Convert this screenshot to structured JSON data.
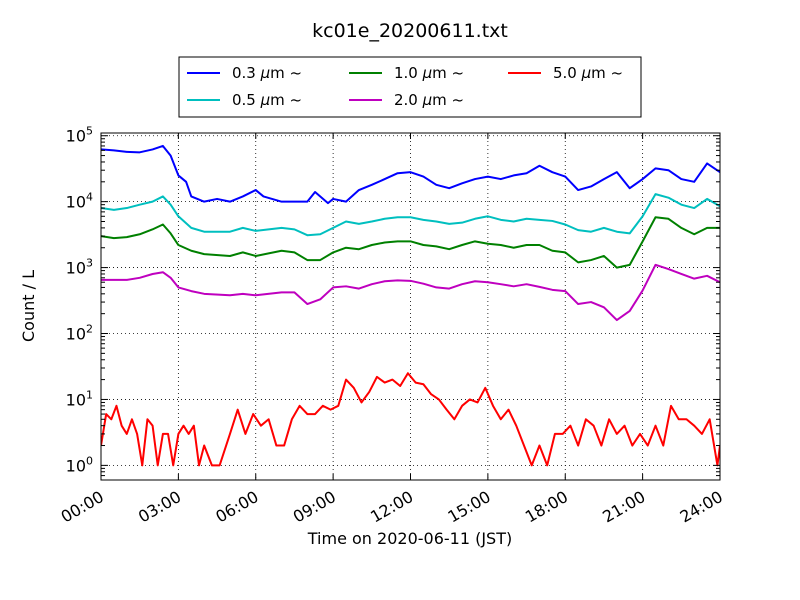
{
  "chart_data": {
    "type": "line",
    "title": "kc01e_20200611.txt",
    "xlabel": "Time on 2020-06-11 (JST)",
    "ylabel": "Count / L",
    "x_range_hours": [
      0,
      24
    ],
    "x_ticks": [
      {
        "hour": 0,
        "label": "00:00"
      },
      {
        "hour": 3,
        "label": "03:00"
      },
      {
        "hour": 6,
        "label": "06:00"
      },
      {
        "hour": 9,
        "label": "09:00"
      },
      {
        "hour": 12,
        "label": "12:00"
      },
      {
        "hour": 15,
        "label": "15:00"
      },
      {
        "hour": 18,
        "label": "18:00"
      },
      {
        "hour": 21,
        "label": "21:00"
      },
      {
        "hour": 24,
        "label": "24:00"
      }
    ],
    "y_scale": "log",
    "y_range": [
      0.6,
      110000
    ],
    "y_ticks": [
      {
        "value": 1,
        "base": "10",
        "exp": "0"
      },
      {
        "value": 10,
        "base": "10",
        "exp": "1"
      },
      {
        "value": 100,
        "base": "10",
        "exp": "2"
      },
      {
        "value": 1000,
        "base": "10",
        "exp": "3"
      },
      {
        "value": 10000,
        "base": "10",
        "exp": "4"
      },
      {
        "value": 100000,
        "base": "10",
        "exp": "5"
      }
    ],
    "grid": true,
    "legend_position": "top-center, above plot",
    "series": [
      {
        "name": "0.3 μm ~",
        "name_parts": [
          "0.3 ",
          "μ",
          "m  ~"
        ],
        "color": "#0000ff",
        "points": [
          [
            0,
            62000
          ],
          [
            0.5,
            60000
          ],
          [
            1,
            57000
          ],
          [
            1.5,
            56000
          ],
          [
            2,
            62000
          ],
          [
            2.4,
            70000
          ],
          [
            2.7,
            50000
          ],
          [
            3,
            25000
          ],
          [
            3.3,
            20000
          ],
          [
            3.5,
            12000
          ],
          [
            4,
            10000
          ],
          [
            4.5,
            11000
          ],
          [
            5,
            10000
          ],
          [
            5.5,
            12000
          ],
          [
            6,
            15000
          ],
          [
            6.3,
            12000
          ],
          [
            7,
            10000
          ],
          [
            8,
            10000
          ],
          [
            8.3,
            14000
          ],
          [
            8.8,
            9500
          ],
          [
            9,
            11000
          ],
          [
            9.5,
            10000
          ],
          [
            10,
            15000
          ],
          [
            10.5,
            18000
          ],
          [
            11,
            22000
          ],
          [
            11.5,
            27000
          ],
          [
            12,
            28000
          ],
          [
            12.5,
            24000
          ],
          [
            13,
            18000
          ],
          [
            13.5,
            16000
          ],
          [
            14,
            19000
          ],
          [
            14.5,
            22000
          ],
          [
            15,
            24000
          ],
          [
            15.5,
            22000
          ],
          [
            16,
            25000
          ],
          [
            16.5,
            27000
          ],
          [
            17,
            35000
          ],
          [
            17.5,
            28000
          ],
          [
            18,
            24000
          ],
          [
            18.5,
            15000
          ],
          [
            19,
            17000
          ],
          [
            19.5,
            22000
          ],
          [
            20,
            28000
          ],
          [
            20.5,
            16000
          ],
          [
            21,
            22000
          ],
          [
            21.5,
            32000
          ],
          [
            22,
            30000
          ],
          [
            22.5,
            22000
          ],
          [
            23,
            20000
          ],
          [
            23.5,
            38000
          ],
          [
            24,
            28000
          ]
        ]
      },
      {
        "name": "0.5 μm ~",
        "name_parts": [
          "0.5 ",
          "μ",
          "m  ~"
        ],
        "color": "#00bfbf",
        "points": [
          [
            0,
            8000
          ],
          [
            0.5,
            7500
          ],
          [
            1,
            8000
          ],
          [
            1.5,
            9000
          ],
          [
            2,
            10000
          ],
          [
            2.4,
            12000
          ],
          [
            2.7,
            9000
          ],
          [
            3,
            6000
          ],
          [
            3.5,
            4000
          ],
          [
            4,
            3500
          ],
          [
            5,
            3500
          ],
          [
            5.5,
            4000
          ],
          [
            6,
            3600
          ],
          [
            7,
            4000
          ],
          [
            7.5,
            3800
          ],
          [
            8,
            3100
          ],
          [
            8.5,
            3200
          ],
          [
            9,
            4000
          ],
          [
            9.5,
            5000
          ],
          [
            10,
            4600
          ],
          [
            10.5,
            5000
          ],
          [
            11,
            5500
          ],
          [
            11.5,
            5800
          ],
          [
            12,
            5800
          ],
          [
            12.5,
            5300
          ],
          [
            13,
            5000
          ],
          [
            13.5,
            4600
          ],
          [
            14,
            4800
          ],
          [
            14.5,
            5500
          ],
          [
            15,
            6000
          ],
          [
            15.5,
            5300
          ],
          [
            16,
            5000
          ],
          [
            16.5,
            5500
          ],
          [
            17,
            5300
          ],
          [
            17.5,
            5100
          ],
          [
            18,
            4500
          ],
          [
            18.5,
            3700
          ],
          [
            19,
            3500
          ],
          [
            19.5,
            4000
          ],
          [
            20,
            3500
          ],
          [
            20.5,
            3300
          ],
          [
            21,
            6000
          ],
          [
            21.5,
            13000
          ],
          [
            22,
            11500
          ],
          [
            22.5,
            9000
          ],
          [
            23,
            8000
          ],
          [
            23.5,
            11000
          ],
          [
            24,
            8500
          ]
        ]
      },
      {
        "name": "1.0 μm ~",
        "name_parts": [
          "1.0 ",
          "μ",
          "m  ~"
        ],
        "color": "#008000",
        "points": [
          [
            0,
            3000
          ],
          [
            0.5,
            2800
          ],
          [
            1,
            2900
          ],
          [
            1.5,
            3200
          ],
          [
            2,
            3800
          ],
          [
            2.4,
            4500
          ],
          [
            2.7,
            3300
          ],
          [
            3,
            2200
          ],
          [
            3.5,
            1800
          ],
          [
            4,
            1600
          ],
          [
            5,
            1500
          ],
          [
            5.5,
            1700
          ],
          [
            6,
            1500
          ],
          [
            7,
            1800
          ],
          [
            7.5,
            1700
          ],
          [
            8,
            1300
          ],
          [
            8.5,
            1300
          ],
          [
            9,
            1700
          ],
          [
            9.5,
            2000
          ],
          [
            10,
            1900
          ],
          [
            10.5,
            2200
          ],
          [
            11,
            2400
          ],
          [
            11.5,
            2500
          ],
          [
            12,
            2500
          ],
          [
            12.5,
            2200
          ],
          [
            13,
            2100
          ],
          [
            13.5,
            1900
          ],
          [
            14,
            2200
          ],
          [
            14.5,
            2500
          ],
          [
            15,
            2300
          ],
          [
            15.5,
            2200
          ],
          [
            16,
            2000
          ],
          [
            16.5,
            2200
          ],
          [
            17,
            2200
          ],
          [
            17.5,
            1800
          ],
          [
            18,
            1700
          ],
          [
            18.5,
            1200
          ],
          [
            19,
            1300
          ],
          [
            19.5,
            1500
          ],
          [
            20,
            1000
          ],
          [
            20.5,
            1100
          ],
          [
            21,
            2500
          ],
          [
            21.5,
            5800
          ],
          [
            22,
            5500
          ],
          [
            22.5,
            4000
          ],
          [
            23,
            3200
          ],
          [
            23.5,
            4000
          ],
          [
            24,
            4000
          ]
        ]
      },
      {
        "name": "2.0 μm ~",
        "name_parts": [
          "2.0 ",
          "μ",
          "m  ~"
        ],
        "color": "#bf00bf",
        "points": [
          [
            0,
            650
          ],
          [
            0.5,
            650
          ],
          [
            1,
            650
          ],
          [
            1.5,
            700
          ],
          [
            2,
            800
          ],
          [
            2.4,
            850
          ],
          [
            2.7,
            700
          ],
          [
            3,
            500
          ],
          [
            3.5,
            440
          ],
          [
            4,
            400
          ],
          [
            5,
            380
          ],
          [
            5.5,
            400
          ],
          [
            6,
            380
          ],
          [
            7,
            420
          ],
          [
            7.5,
            420
          ],
          [
            8,
            280
          ],
          [
            8.5,
            330
          ],
          [
            9,
            500
          ],
          [
            9.5,
            520
          ],
          [
            10,
            480
          ],
          [
            10.5,
            560
          ],
          [
            11,
            620
          ],
          [
            11.5,
            640
          ],
          [
            12,
            630
          ],
          [
            12.5,
            570
          ],
          [
            13,
            500
          ],
          [
            13.5,
            480
          ],
          [
            14,
            560
          ],
          [
            14.5,
            620
          ],
          [
            15,
            600
          ],
          [
            15.5,
            560
          ],
          [
            16,
            520
          ],
          [
            16.5,
            560
          ],
          [
            17,
            510
          ],
          [
            17.5,
            460
          ],
          [
            18,
            440
          ],
          [
            18.5,
            280
          ],
          [
            19,
            300
          ],
          [
            19.5,
            250
          ],
          [
            20,
            160
          ],
          [
            20.5,
            220
          ],
          [
            21,
            450
          ],
          [
            21.5,
            1100
          ],
          [
            22,
            950
          ],
          [
            22.5,
            800
          ],
          [
            23,
            680
          ],
          [
            23.5,
            750
          ],
          [
            24,
            600
          ]
        ]
      },
      {
        "name": "5.0 μm ~",
        "name_parts": [
          "5.0 ",
          "μ",
          "m  ~"
        ],
        "color": "#ff0000",
        "points": [
          [
            0,
            2
          ],
          [
            0.2,
            6
          ],
          [
            0.4,
            5
          ],
          [
            0.6,
            8
          ],
          [
            0.8,
            4
          ],
          [
            1,
            3
          ],
          [
            1.2,
            5
          ],
          [
            1.4,
            3
          ],
          [
            1.6,
            1
          ],
          [
            1.8,
            5
          ],
          [
            2,
            4
          ],
          [
            2.2,
            1
          ],
          [
            2.4,
            3
          ],
          [
            2.6,
            3
          ],
          [
            2.8,
            1
          ],
          [
            3,
            3
          ],
          [
            3.2,
            4
          ],
          [
            3.4,
            3
          ],
          [
            3.6,
            4
          ],
          [
            3.8,
            1
          ],
          [
            4,
            2
          ],
          [
            4.3,
            1
          ],
          [
            4.6,
            1
          ],
          [
            5,
            3
          ],
          [
            5.3,
            7
          ],
          [
            5.6,
            3
          ],
          [
            5.9,
            6
          ],
          [
            6.2,
            4
          ],
          [
            6.5,
            5
          ],
          [
            6.8,
            2
          ],
          [
            7.1,
            2
          ],
          [
            7.4,
            5
          ],
          [
            7.7,
            8
          ],
          [
            8,
            6
          ],
          [
            8.3,
            6
          ],
          [
            8.6,
            8
          ],
          [
            8.9,
            7
          ],
          [
            9.2,
            8
          ],
          [
            9.5,
            20
          ],
          [
            9.8,
            15
          ],
          [
            10.1,
            9
          ],
          [
            10.4,
            13
          ],
          [
            10.7,
            22
          ],
          [
            11,
            18
          ],
          [
            11.3,
            20
          ],
          [
            11.6,
            16
          ],
          [
            11.9,
            25
          ],
          [
            12.2,
            18
          ],
          [
            12.5,
            17
          ],
          [
            12.8,
            12
          ],
          [
            13.1,
            10
          ],
          [
            13.4,
            7
          ],
          [
            13.7,
            5
          ],
          [
            14,
            8
          ],
          [
            14.3,
            10
          ],
          [
            14.6,
            9
          ],
          [
            14.9,
            15
          ],
          [
            15.2,
            8
          ],
          [
            15.5,
            5
          ],
          [
            15.8,
            7
          ],
          [
            16.1,
            4
          ],
          [
            16.4,
            2
          ],
          [
            16.7,
            1
          ],
          [
            17,
            2
          ],
          [
            17.3,
            1
          ],
          [
            17.6,
            3
          ],
          [
            17.9,
            3
          ],
          [
            18.2,
            4
          ],
          [
            18.5,
            2
          ],
          [
            18.8,
            5
          ],
          [
            19.1,
            4
          ],
          [
            19.4,
            2
          ],
          [
            19.7,
            5
          ],
          [
            20,
            3
          ],
          [
            20.3,
            4
          ],
          [
            20.6,
            2
          ],
          [
            20.9,
            3
          ],
          [
            21.2,
            2
          ],
          [
            21.5,
            4
          ],
          [
            21.8,
            2
          ],
          [
            22.1,
            8
          ],
          [
            22.4,
            5
          ],
          [
            22.7,
            5
          ],
          [
            23,
            4
          ],
          [
            23.3,
            3
          ],
          [
            23.6,
            5
          ],
          [
            23.9,
            1
          ],
          [
            24,
            2
          ]
        ]
      }
    ]
  }
}
